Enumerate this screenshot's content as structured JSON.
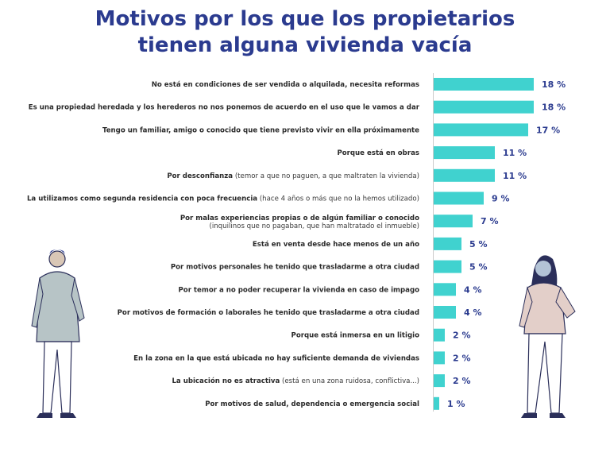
{
  "title_line1": "Motivos por los que los propietarios",
  "title_line2": "tienen alguna vivienda vacía",
  "colors": {
    "bar": "#40d2cf",
    "title": "#2b3b8f",
    "value": "#2b3b8f"
  },
  "chart_data": {
    "type": "bar",
    "orientation": "horizontal",
    "title": "Motivos por los que los propietarios tienen alguna vivienda vacía",
    "xlabel": "",
    "ylabel": "",
    "xlim": [
      0,
      18
    ],
    "grid": false,
    "unit": "%",
    "categories": [
      {
        "main": "No está en condiciones de ser vendida o alquilada, necesita reformas",
        "sub": "",
        "sub2": ""
      },
      {
        "main": "Es una propiedad heredada y los herederos no nos ponemos de acuerdo en el uso que le vamos a dar",
        "sub": "",
        "sub2": ""
      },
      {
        "main": "Tengo un familiar, amigo o conocido que tiene previsto vivir en ella próximamente",
        "sub": "",
        "sub2": ""
      },
      {
        "main": "Porque está en obras",
        "sub": "",
        "sub2": ""
      },
      {
        "main": "Por desconfianza",
        "sub": "(temor a que no paguen, a que maltraten la vivienda)",
        "sub2": ""
      },
      {
        "main": "La utilizamos como segunda residencia con poca frecuencia",
        "sub": "(hace 4 años o más que no la hemos utilizado)",
        "sub2": ""
      },
      {
        "main": "Por malas experiencias propias o de algún familiar o conocido",
        "sub": "",
        "sub2": "(inquilinos que no pagaban, que han maltratado el inmueble)"
      },
      {
        "main": "Está en venta desde hace menos de un año",
        "sub": "",
        "sub2": ""
      },
      {
        "main": "Por motivos personales he tenido que trasladarme a otra ciudad",
        "sub": "",
        "sub2": ""
      },
      {
        "main": "Por temor a no poder recuperar la vivienda en caso de impago",
        "sub": "",
        "sub2": ""
      },
      {
        "main": "Por motivos de formación o laborales he tenido que trasladarme a otra ciudad",
        "sub": "",
        "sub2": ""
      },
      {
        "main": "Porque está inmersa en un litigio",
        "sub": "",
        "sub2": ""
      },
      {
        "main": "En la zona en la que está ubicada no hay suficiente demanda de viviendas",
        "sub": "",
        "sub2": ""
      },
      {
        "main": "La ubicación no es atractiva",
        "sub": "(está en una zona ruidosa, conflictiva...)",
        "sub2": ""
      },
      {
        "main": "Por motivos de salud, dependencia o emergencia social",
        "sub": "",
        "sub2": ""
      }
    ],
    "values": [
      18,
      18,
      17,
      11,
      11,
      9,
      7,
      5,
      5,
      4,
      4,
      2,
      2,
      2,
      1
    ],
    "value_labels": [
      "18 %",
      "18 %",
      "17 %",
      "11 %",
      "11 %",
      "9 %",
      "7 %",
      "5 %",
      "5 %",
      "4 %",
      "4 %",
      "2 %",
      "2 %",
      "2 %",
      "1 %"
    ]
  }
}
